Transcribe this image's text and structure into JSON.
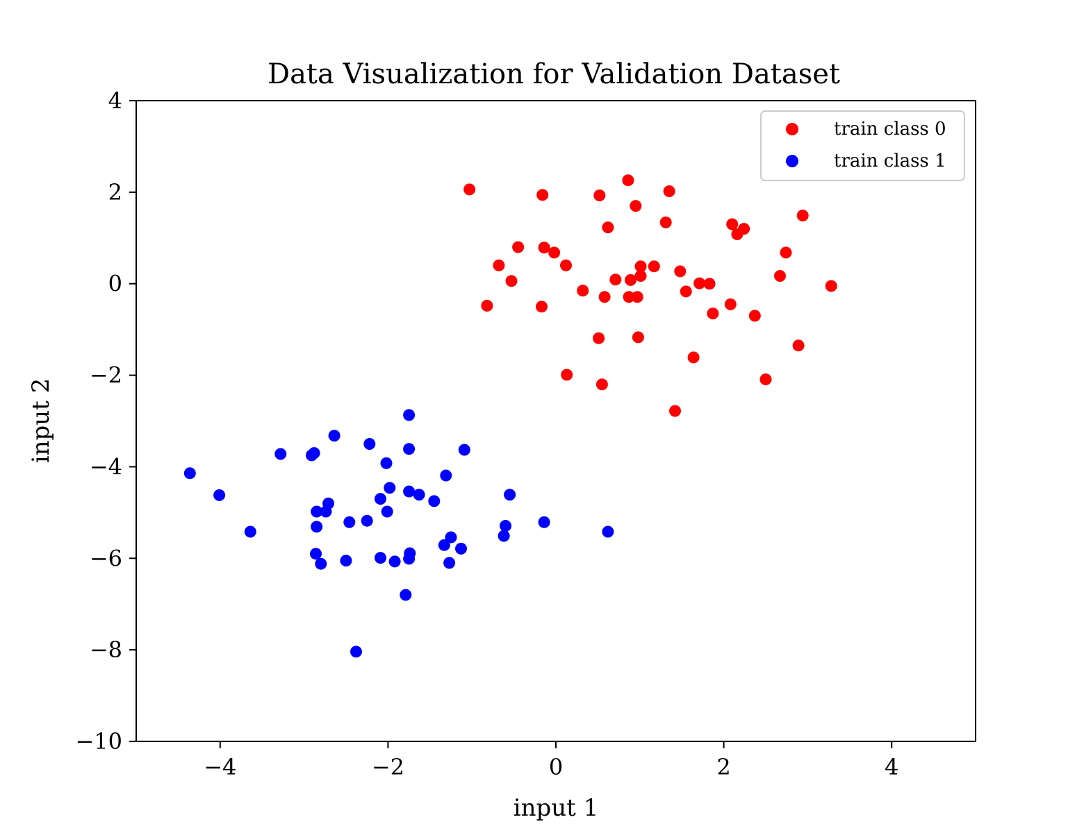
{
  "chart_data": {
    "type": "scatter",
    "title": "Data Visualization for Validation Dataset",
    "xlabel": "input 1",
    "ylabel": "input 2",
    "xlim": [
      -5,
      5
    ],
    "ylim": [
      -10,
      4
    ],
    "xticks": [
      -4,
      -2,
      0,
      2,
      4
    ],
    "xtick_labels": [
      "−4",
      "−2",
      "0",
      "2",
      "4"
    ],
    "yticks": [
      -10,
      -8,
      -6,
      -4,
      -2,
      0,
      2,
      4
    ],
    "ytick_labels": [
      "−10",
      "−8",
      "−6",
      "−4",
      "−2",
      "0",
      "2",
      "4"
    ],
    "grid": false,
    "legend_position": "top-right",
    "series": [
      {
        "name": "train class 0",
        "color": "#ff0000",
        "points": [
          [
            -1.03,
            2.06
          ],
          [
            -0.16,
            1.94
          ],
          [
            0.52,
            1.93
          ],
          [
            0.86,
            2.26
          ],
          [
            1.35,
            2.02
          ],
          [
            0.95,
            1.7
          ],
          [
            2.94,
            1.49
          ],
          [
            1.31,
            1.34
          ],
          [
            2.1,
            1.3
          ],
          [
            2.24,
            1.2
          ],
          [
            0.62,
            1.23
          ],
          [
            2.16,
            1.08
          ],
          [
            -0.45,
            0.8
          ],
          [
            -0.14,
            0.79
          ],
          [
            -0.02,
            0.68
          ],
          [
            2.74,
            0.68
          ],
          [
            -0.68,
            0.4
          ],
          [
            0.12,
            0.4
          ],
          [
            1.17,
            0.38
          ],
          [
            1.01,
            0.38
          ],
          [
            1.48,
            0.27
          ],
          [
            2.67,
            0.17
          ],
          [
            1.01,
            0.17
          ],
          [
            0.71,
            0.09
          ],
          [
            0.89,
            0.08
          ],
          [
            -0.53,
            0.06
          ],
          [
            1.71,
            0.01
          ],
          [
            1.83,
            0.0
          ],
          [
            3.28,
            -0.05
          ],
          [
            0.32,
            -0.15
          ],
          [
            1.55,
            -0.17
          ],
          [
            0.58,
            -0.29
          ],
          [
            0.87,
            -0.29
          ],
          [
            0.97,
            -0.29
          ],
          [
            2.08,
            -0.45
          ],
          [
            -0.82,
            -0.48
          ],
          [
            -0.17,
            -0.5
          ],
          [
            1.87,
            -0.65
          ],
          [
            2.37,
            -0.7
          ],
          [
            0.51,
            -1.19
          ],
          [
            0.98,
            -1.17
          ],
          [
            2.89,
            -1.35
          ],
          [
            1.64,
            -1.61
          ],
          [
            0.13,
            -1.99
          ],
          [
            2.5,
            -2.09
          ],
          [
            0.55,
            -2.2
          ],
          [
            1.42,
            -2.78
          ]
        ]
      },
      {
        "name": "train class 1",
        "color": "#0000ff",
        "points": [
          [
            -1.75,
            -2.87
          ],
          [
            -2.64,
            -3.32
          ],
          [
            -2.22,
            -3.5
          ],
          [
            -1.75,
            -3.61
          ],
          [
            -1.09,
            -3.63
          ],
          [
            -3.28,
            -3.72
          ],
          [
            -2.88,
            -3.7
          ],
          [
            -2.91,
            -3.75
          ],
          [
            -2.02,
            -3.92
          ],
          [
            -4.36,
            -4.14
          ],
          [
            -1.31,
            -4.19
          ],
          [
            -1.98,
            -4.46
          ],
          [
            -4.01,
            -4.62
          ],
          [
            -1.75,
            -4.54
          ],
          [
            -1.63,
            -4.61
          ],
          [
            -0.55,
            -4.61
          ],
          [
            -2.09,
            -4.7
          ],
          [
            -1.45,
            -4.75
          ],
          [
            -2.71,
            -4.8
          ],
          [
            -2.85,
            -4.98
          ],
          [
            -2.74,
            -4.98
          ],
          [
            -2.01,
            -4.98
          ],
          [
            -2.46,
            -5.21
          ],
          [
            -2.25,
            -5.18
          ],
          [
            -0.14,
            -5.21
          ],
          [
            -2.85,
            -5.31
          ],
          [
            -0.6,
            -5.29
          ],
          [
            -3.64,
            -5.42
          ],
          [
            0.62,
            -5.42
          ],
          [
            -0.62,
            -5.51
          ],
          [
            -1.25,
            -5.54
          ],
          [
            -1.33,
            -5.71
          ],
          [
            -1.13,
            -5.79
          ],
          [
            -2.86,
            -5.9
          ],
          [
            -1.74,
            -5.89
          ],
          [
            -2.09,
            -5.99
          ],
          [
            -1.75,
            -6.01
          ],
          [
            -2.5,
            -6.05
          ],
          [
            -1.92,
            -6.07
          ],
          [
            -2.8,
            -6.12
          ],
          [
            -1.27,
            -6.1
          ],
          [
            -1.79,
            -6.8
          ],
          [
            -2.38,
            -8.04
          ]
        ]
      }
    ]
  }
}
